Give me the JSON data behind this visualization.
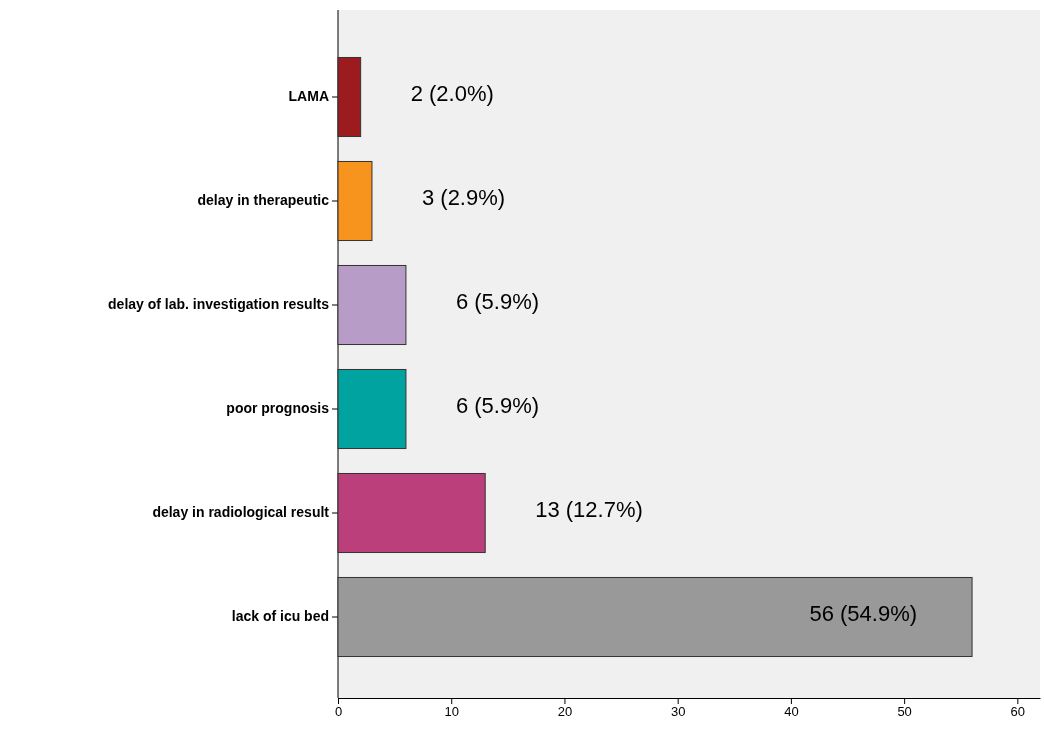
{
  "chart_data": {
    "type": "bar",
    "orientation": "horizontal",
    "categories": [
      "LAMA",
      "delay in therapeutic",
      "delay of lab. investigation results",
      "poor prognosis",
      "delay in radiological result",
      "lack of icu bed"
    ],
    "values": [
      2,
      3,
      6,
      6,
      13,
      56
    ],
    "colors": [
      "#9b1b1e",
      "#f7941d",
      "#b89cc8",
      "#00a3a0",
      "#bb3f7a",
      "#999999"
    ],
    "value_labels": [
      "2 (2.0%)",
      "3 (2.9%)",
      "6 (5.9%)",
      "6 (5.9%)",
      "13 (12.7%)",
      "56 (54.9%)"
    ],
    "xlim": [
      0,
      62
    ],
    "xticks": [
      0,
      10,
      20,
      30,
      40,
      50,
      60
    ],
    "grid": false
  }
}
